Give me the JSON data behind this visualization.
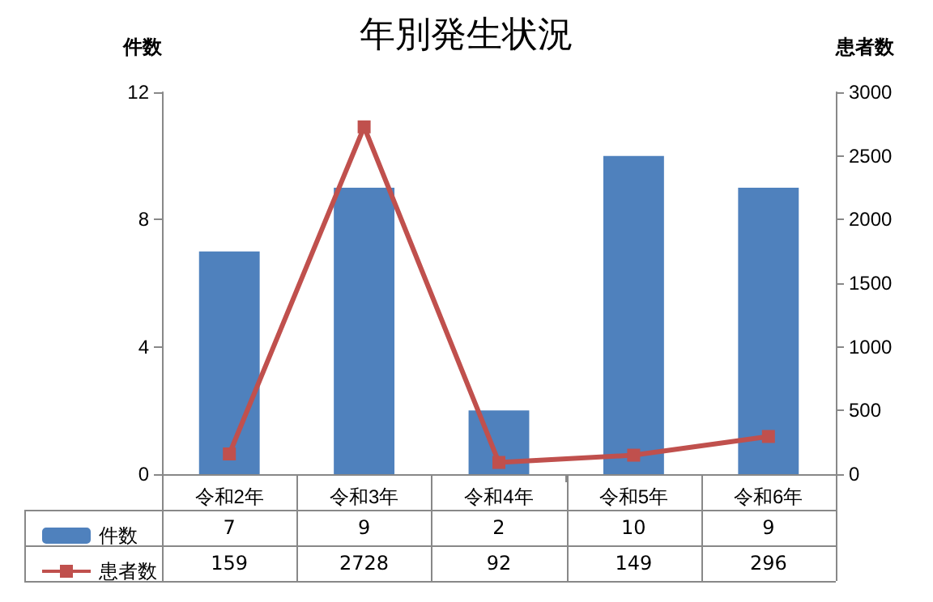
{
  "chart_data": {
    "type": "bar",
    "title": "年別発生状況",
    "ylabel": "件数",
    "y2label": "患者数",
    "categories": [
      "令和2年",
      "令和3年",
      "令和4年",
      "令和5年",
      "令和6年"
    ],
    "series": [
      {
        "name": "件数",
        "color": "#4f81bd",
        "values": [
          7,
          9,
          2,
          10,
          9
        ]
      },
      {
        "name": "患者数",
        "type": "line",
        "axis": "y2",
        "color": "#c0504d",
        "values": [
          159,
          2728,
          92,
          149,
          296
        ],
        "marker": "square"
      }
    ],
    "ylim": [
      0,
      12
    ],
    "yticks": [
      0,
      4,
      8,
      12
    ],
    "y2lim": [
      0,
      3000
    ],
    "y2ticks": [
      0,
      500,
      1000,
      1500,
      2000,
      2500,
      3000
    ],
    "data_labels": true,
    "legend": "bottom left"
  }
}
